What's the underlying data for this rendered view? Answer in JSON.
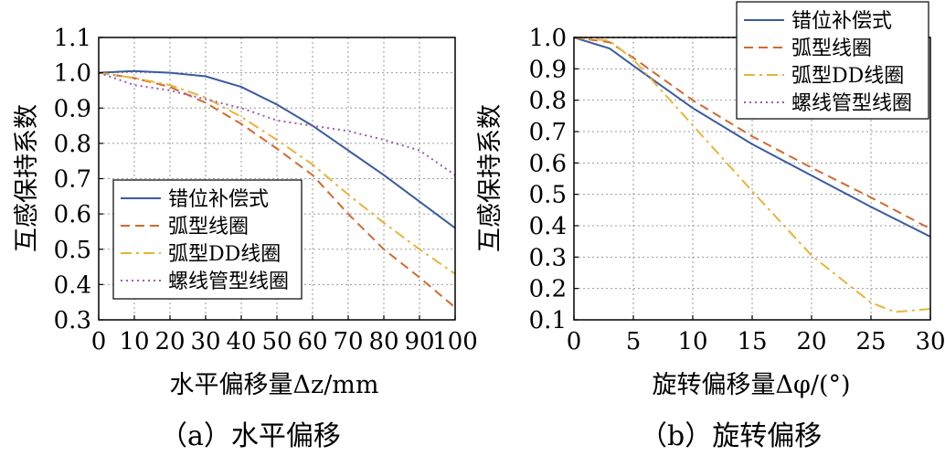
{
  "chart_data": [
    {
      "type": "line",
      "title": "",
      "xlabel": "水平偏移量Δz/mm",
      "ylabel": "互感保持系数",
      "xlim": [
        0,
        100
      ],
      "ylim": [
        0.3,
        1.1
      ],
      "xticks": [
        0,
        10,
        20,
        30,
        40,
        50,
        60,
        70,
        80,
        90,
        100
      ],
      "yticks": [
        "0.3",
        "0.4",
        "0.5",
        "0.6",
        "0.7",
        "0.8",
        "0.9",
        "1.0",
        "1.1"
      ],
      "grid": true,
      "legend_position": "bottom-left",
      "series": [
        {
          "name": "错位补偿式",
          "color": "#3a5ba0",
          "dash": "solid",
          "x": [
            0,
            10,
            20,
            30,
            40,
            50,
            60,
            70,
            80,
            90,
            100
          ],
          "y": [
            1.0,
            1.005,
            1.0,
            0.99,
            0.96,
            0.91,
            0.85,
            0.78,
            0.71,
            0.635,
            0.56
          ]
        },
        {
          "name": "弧型线圈",
          "color": "#d2692f",
          "dash": "dashed",
          "x": [
            0,
            10,
            20,
            30,
            40,
            50,
            60,
            70,
            80,
            90,
            100
          ],
          "y": [
            1.0,
            0.985,
            0.96,
            0.915,
            0.855,
            0.785,
            0.71,
            0.6,
            0.5,
            0.42,
            0.335
          ]
        },
        {
          "name": "弧型DD线圈",
          "color": "#e8b439",
          "dash": "dashdot",
          "x": [
            0,
            10,
            20,
            30,
            40,
            50,
            60,
            70,
            80,
            90,
            100
          ],
          "y": [
            1.0,
            0.985,
            0.965,
            0.93,
            0.875,
            0.81,
            0.74,
            0.655,
            0.575,
            0.5,
            0.43
          ]
        },
        {
          "name": "螺线管型线圈",
          "color": "#9b59b6",
          "dash": "dotted",
          "x": [
            0,
            10,
            20,
            30,
            40,
            50,
            60,
            70,
            80,
            90,
            100
          ],
          "y": [
            1.0,
            0.965,
            0.95,
            0.925,
            0.9,
            0.865,
            0.85,
            0.835,
            0.81,
            0.78,
            0.71
          ]
        }
      ]
    },
    {
      "type": "line",
      "title": "",
      "xlabel": "旋转偏移量Δφ/(°)",
      "ylabel": "互感保持系数",
      "xlim": [
        0,
        30
      ],
      "ylim": [
        0.1,
        1.0
      ],
      "xticks": [
        0,
        5,
        10,
        15,
        20,
        25,
        30
      ],
      "yticks": [
        "0.1",
        "0.2",
        "0.3",
        "0.4",
        "0.5",
        "0.6",
        "0.7",
        "0.8",
        "0.9",
        "1.0"
      ],
      "grid": true,
      "legend_position": "top-right",
      "series": [
        {
          "name": "错位补偿式",
          "color": "#3a5ba0",
          "dash": "solid",
          "x": [
            0,
            3,
            5,
            10,
            15,
            20,
            25,
            30
          ],
          "y": [
            1.0,
            0.965,
            0.91,
            0.775,
            0.66,
            0.56,
            0.46,
            0.365
          ]
        },
        {
          "name": "弧型线圈",
          "color": "#d2692f",
          "dash": "dashed",
          "x": [
            0,
            3,
            5,
            10,
            15,
            20,
            25,
            30
          ],
          "y": [
            1.0,
            0.985,
            0.935,
            0.8,
            0.685,
            0.585,
            0.49,
            0.39
          ]
        },
        {
          "name": "弧型DD线圈",
          "color": "#e8b439",
          "dash": "dashdot",
          "x": [
            0,
            3,
            5,
            10,
            15,
            20,
            25,
            27,
            30
          ],
          "y": [
            1.0,
            0.99,
            0.93,
            0.72,
            0.51,
            0.305,
            0.155,
            0.125,
            0.135
          ]
        },
        {
          "name": "螺线管型线圈",
          "color": "#9b59b6",
          "dash": "dotted",
          "x": [
            0,
            5,
            10,
            15,
            20,
            25,
            30
          ],
          "y": [
            1.0,
            1.0,
            1.0,
            1.0,
            1.0,
            1.0,
            1.0
          ]
        }
      ]
    }
  ],
  "captions": {
    "a": "（a）水平偏移",
    "b": "（b）旋转偏移"
  }
}
